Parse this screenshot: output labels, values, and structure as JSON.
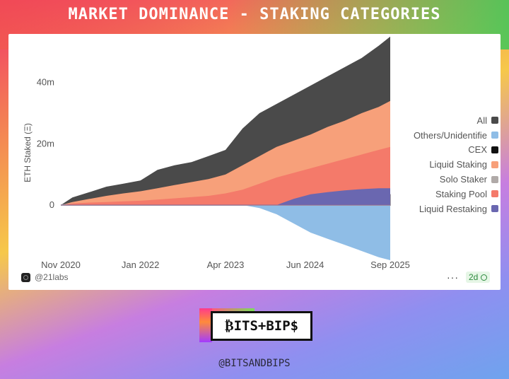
{
  "header": {
    "title": "MARKET DOMINANCE - STAKING CATEGORIES"
  },
  "chart_data": {
    "type": "area",
    "ylabel": "ETH Staked (Ξ)",
    "y_ticks": [
      {
        "label": "40m",
        "value": 40
      },
      {
        "label": "20m",
        "value": 20
      },
      {
        "label": "0",
        "value": 0
      }
    ],
    "ylim": [
      -18,
      54
    ],
    "x_ticks": [
      {
        "label": "Nov 2020",
        "value": 2020.83
      },
      {
        "label": "Jan 2022",
        "value": 2022.0
      },
      {
        "label": "Apr 2023",
        "value": 2023.25
      },
      {
        "label": "Jun 2024",
        "value": 2024.42
      },
      {
        "label": "Sep 2025",
        "value": 2025.67
      }
    ],
    "xlim": [
      2020.83,
      2025.67
    ],
    "x": [
      2020.83,
      2021.0,
      2021.25,
      2021.5,
      2021.75,
      2022.0,
      2022.25,
      2022.5,
      2022.75,
      2023.0,
      2023.25,
      2023.5,
      2023.75,
      2024.0,
      2024.25,
      2024.5,
      2024.75,
      2025.0,
      2025.25,
      2025.5,
      2025.67
    ],
    "series": [
      {
        "name": "All",
        "color": "#4a4a4a",
        "values": [
          0,
          2.5,
          4.2,
          6,
          7,
          8,
          11.5,
          13,
          14,
          16,
          18,
          25,
          30,
          33,
          36,
          39,
          42,
          45,
          48,
          52,
          55
        ]
      },
      {
        "name": "Others/Unidentifie",
        "color": "#8fbde6",
        "values": [
          0,
          0,
          0,
          0,
          0,
          0,
          0,
          0,
          0,
          0,
          0,
          0,
          -1,
          -3,
          -6,
          -9,
          -11,
          -13,
          -15,
          -17,
          -18
        ]
      },
      {
        "name": "CEX",
        "color": "#111111",
        "values": [
          0,
          0.8,
          1.6,
          2.2,
          2.8,
          3.5,
          4.5,
          5.2,
          5.8,
          6.5,
          7.5,
          8.5,
          9.2,
          10,
          10.5,
          11,
          11.5,
          12,
          12.5,
          13,
          13.5
        ]
      },
      {
        "name": "Liquid Staking",
        "color": "#f7a07a",
        "values": [
          0,
          1,
          2,
          3,
          3.8,
          4.5,
          5.5,
          6.5,
          7.5,
          8.5,
          10,
          13,
          16,
          19,
          21,
          23,
          25.5,
          27.5,
          30,
          32,
          34
        ]
      },
      {
        "name": "Solo Staker",
        "color": "#b0aaa8",
        "values": [
          0,
          0.3,
          0.5,
          0.7,
          0.9,
          1,
          1.2,
          1.4,
          1.6,
          1.8,
          2,
          2.2,
          2.4,
          2.6,
          2.7,
          2.8,
          2.9,
          3,
          3.1,
          3.2,
          3.3
        ]
      },
      {
        "name": "Staking Pool",
        "color": "#f47a6a",
        "values": [
          0,
          0.5,
          0.8,
          1,
          1.2,
          1.4,
          1.8,
          2.2,
          2.6,
          3,
          3.8,
          5,
          7,
          9,
          10.5,
          12,
          13.5,
          15,
          16.5,
          18,
          19
        ]
      },
      {
        "name": "Liquid Restaking",
        "color": "#6a67b0",
        "values": [
          0,
          0,
          0,
          0,
          0,
          0,
          0,
          0,
          0,
          0,
          0,
          0,
          0,
          0,
          2,
          3.5,
          4.2,
          4.8,
          5.2,
          5.5,
          5.5
        ]
      }
    ],
    "legend_position": "right",
    "grid": false
  },
  "footer": {
    "source": "@21labs",
    "more": "···",
    "badge": "2d"
  },
  "brand": {
    "logo_text": "₿ITS+BIP$",
    "handle": "@BITSANDBIPS"
  }
}
